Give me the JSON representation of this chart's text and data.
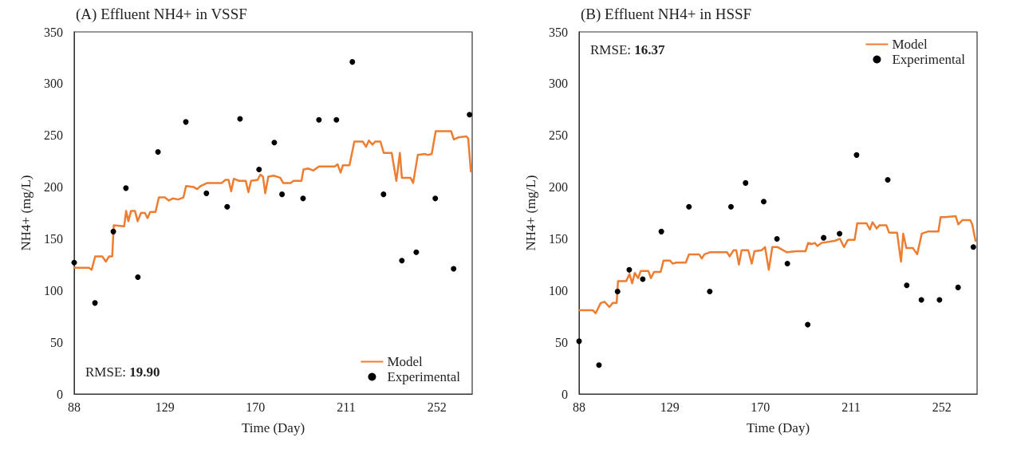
{
  "chart_data": [
    {
      "type": "line",
      "title": "(A) Effluent NH4+ in VSSF",
      "xlabel": "Time (Day)",
      "ylabel": "NH4+ (mg/L)",
      "xlim": [
        88,
        268
      ],
      "xticks": [
        88,
        129,
        170,
        211,
        252
      ],
      "ylim": [
        0,
        350
      ],
      "yticks": [
        0,
        50,
        100,
        150,
        200,
        250,
        300,
        350
      ],
      "grid": false,
      "legend": "bottom right",
      "annotations": [
        "RMSE: 19.90"
      ],
      "series": [
        {
          "name": "Model",
          "color": "#ed7d31",
          "marker": "none",
          "line_style": "solid",
          "x": [
            88,
            94.6,
            95.9,
            97.5,
            100.7,
            102.3,
            103.8,
            105.2,
            105.9,
            110.6,
            111.5,
            112.5,
            113.7,
            115.5,
            116.7,
            118.2,
            120,
            121.2,
            122.4,
            124.8,
            126.3,
            129,
            130.8,
            132.6,
            135,
            137.4,
            138.6,
            142,
            143.6,
            145.2,
            148.2,
            154.8,
            156.4,
            157.8,
            159,
            160.2,
            162.6,
            165.6,
            166.8,
            168,
            171,
            172.2,
            173.4,
            174.4,
            175.8,
            178.2,
            181.2,
            182.5,
            186,
            187.2,
            190.8,
            191.7,
            193.8,
            196.2,
            198.7,
            205.9,
            207.1,
            208.5,
            209.5,
            212.5,
            214.7,
            218.5,
            220,
            221.3,
            222.9,
            224.1,
            226.5,
            228,
            231.6,
            233.7,
            235.3,
            236.2,
            240.1,
            241.3,
            243.4,
            246.7,
            247.9,
            249.7,
            251.5,
            253.9,
            258.5,
            259.7,
            261.7,
            265.4,
            266.2,
            267.4
          ],
          "values": [
            122,
            122,
            120,
            133,
            133,
            128,
            133,
            133,
            163,
            162,
            177,
            167,
            177,
            177,
            167,
            175,
            175,
            170,
            176,
            176,
            190,
            190,
            187,
            189,
            188,
            190,
            201,
            200,
            198,
            201,
            204,
            204,
            207,
            207,
            196,
            208,
            206,
            206,
            195,
            206,
            207,
            212,
            210,
            194,
            210,
            211,
            209,
            204,
            204,
            206,
            206,
            217,
            218,
            216,
            220,
            220,
            222,
            214,
            221,
            221,
            244,
            244,
            239,
            245,
            241,
            244,
            244,
            233,
            233,
            206,
            233,
            209,
            209,
            204,
            231,
            232,
            231,
            232,
            254,
            254,
            254,
            246,
            248,
            249,
            247,
            215
          ]
        },
        {
          "name": "Experimental",
          "type": "scatter",
          "color": "#000000",
          "marker": "circle",
          "x": [
            88,
            97.4,
            105.7,
            111.4,
            116.8,
            125.9,
            138.5,
            147.8,
            157.2,
            163,
            171.6,
            178.5,
            182,
            191.5,
            198.7,
            206.6,
            213.8,
            227.9,
            236.2,
            242.7,
            251.3,
            259.6,
            266.8
          ],
          "values": [
            127,
            88,
            157,
            199,
            113,
            234,
            263,
            194,
            181,
            266,
            217,
            243,
            193,
            189,
            265,
            265,
            321,
            193,
            129,
            137,
            189,
            121,
            270
          ]
        }
      ]
    },
    {
      "type": "line",
      "title": "(B) Effluent NH4+ in HSSF",
      "xlabel": "Time (Day)",
      "ylabel": "NH4+ (mg/L)",
      "xlim": [
        88,
        268
      ],
      "xticks": [
        88,
        129,
        170,
        211,
        252
      ],
      "ylim": [
        0,
        350
      ],
      "yticks": [
        0,
        50,
        100,
        150,
        200,
        250,
        300,
        350
      ],
      "grid": false,
      "legend": "top right",
      "annotations": [
        "RMSE: 16.37"
      ],
      "series": [
        {
          "name": "Model",
          "color": "#ed7d31",
          "marker": "none",
          "line_style": "solid",
          "x": [
            88,
            94.2,
            95.5,
            97.8,
            99.6,
            101.7,
            103.2,
            105,
            105.6,
            109.3,
            110.8,
            112,
            113.2,
            114.7,
            115.9,
            119.3,
            120.5,
            121.9,
            124.9,
            126.2,
            129.1,
            130.3,
            132.1,
            136.3,
            137.7,
            142.3,
            143.5,
            144.7,
            147.1,
            154.9,
            156.1,
            157.9,
            159.1,
            160.3,
            161.5,
            164.5,
            166.1,
            167.3,
            170.6,
            172.1,
            173.8,
            175.4,
            177.8,
            180.2,
            182,
            186.2,
            190.4,
            191.6,
            193.4,
            194.6,
            195.8,
            197.6,
            203.6,
            206,
            207.8,
            209.6,
            212.6,
            213.8,
            218,
            219.5,
            220.7,
            222.6,
            223.8,
            227,
            228.2,
            231.8,
            233.6,
            234.6,
            236,
            239,
            240.9,
            243,
            245.7,
            250.5,
            251.5,
            253.5,
            258.3,
            259.5,
            261.3,
            264.9,
            265.8,
            267.3
          ],
          "values": [
            81,
            81,
            78,
            88,
            89,
            84,
            88,
            88,
            109,
            109,
            116,
            107,
            117,
            112,
            119,
            119,
            112,
            118,
            118,
            129,
            129,
            126,
            127,
            127,
            135,
            135,
            131,
            135,
            137,
            137,
            133,
            139,
            139,
            125,
            139,
            139,
            126,
            138,
            139,
            142,
            120,
            142,
            142,
            139,
            137,
            138,
            138,
            146,
            145,
            146,
            143,
            146,
            148,
            150,
            142,
            149,
            149,
            165,
            165,
            159,
            166,
            160,
            163,
            163,
            156,
            156,
            128,
            155,
            141,
            141,
            135,
            155,
            157,
            157,
            171,
            171,
            172,
            164,
            168,
            168,
            164,
            148
          ]
        },
        {
          "name": "Experimental",
          "type": "scatter",
          "color": "#000000",
          "marker": "circle",
          "x": [
            88,
            97,
            105.4,
            110.7,
            116.8,
            125.2,
            137.7,
            147.1,
            156.7,
            163.3,
            171.5,
            177.5,
            182.2,
            191.4,
            198.6,
            205.8,
            213.5,
            227.6,
            236.2,
            242.8,
            251,
            259.4,
            266.3
          ],
          "values": [
            51,
            28,
            99,
            120,
            111,
            157,
            181,
            99,
            181,
            204,
            186,
            150,
            126,
            67,
            151,
            155,
            231,
            207,
            105,
            91,
            91,
            103,
            142
          ]
        }
      ]
    }
  ]
}
